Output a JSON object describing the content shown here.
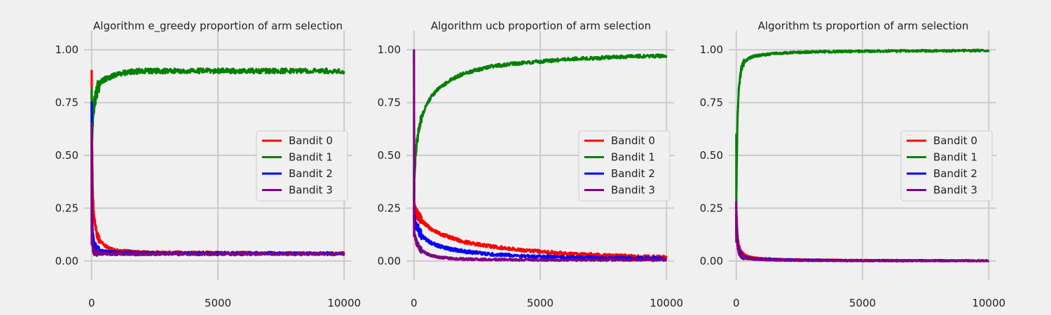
{
  "chart_data": [
    {
      "type": "line",
      "title": "Algorithm e_greedy proportion of arm selection",
      "xlim": [
        -300,
        10300
      ],
      "ylim": [
        -0.09,
        1.09
      ],
      "xticks": [
        0,
        5000,
        10000
      ],
      "xtick_labels": [
        "0",
        "5000",
        "10000"
      ],
      "yticks": [
        0,
        0.25,
        0.5,
        0.75,
        1.0
      ],
      "ytick_labels": [
        "0.00",
        "0.25",
        "0.50",
        "0.75",
        "1.00"
      ],
      "grid": true,
      "legend_position": "center-right",
      "x": [
        0,
        20,
        50,
        100,
        200,
        300,
        500,
        700,
        1000,
        1500,
        2000,
        3000,
        4000,
        5000,
        6000,
        7000,
        8000,
        9000,
        10000
      ],
      "series": [
        {
          "name": "Bandit 0",
          "color": "#ff0000",
          "noise": 0.006,
          "values": [
            0.9,
            0.55,
            0.3,
            0.2,
            0.13,
            0.1,
            0.075,
            0.06,
            0.05,
            0.045,
            0.042,
            0.04,
            0.04,
            0.038,
            0.038,
            0.037,
            0.037,
            0.036,
            0.036
          ]
        },
        {
          "name": "Bandit 1",
          "color": "#008000",
          "noise": 0.012,
          "values": [
            0.8,
            0.6,
            0.67,
            0.74,
            0.8,
            0.84,
            0.86,
            0.87,
            0.885,
            0.895,
            0.9,
            0.9,
            0.9,
            0.9,
            0.9,
            0.9,
            0.9,
            0.9,
            0.9
          ]
        },
        {
          "name": "Bandit 2",
          "color": "#0000ff",
          "noise": 0.006,
          "values": [
            0.75,
            0.2,
            0.12,
            0.08,
            0.06,
            0.05,
            0.045,
            0.042,
            0.04,
            0.04,
            0.038,
            0.038,
            0.037,
            0.037,
            0.037,
            0.037,
            0.036,
            0.036,
            0.036
          ]
        },
        {
          "name": "Bandit 3",
          "color": "#800080",
          "noise": 0.006,
          "values": [
            0.65,
            0.1,
            0.06,
            0.045,
            0.038,
            0.035,
            0.034,
            0.033,
            0.033,
            0.033,
            0.033,
            0.033,
            0.033,
            0.033,
            0.033,
            0.033,
            0.033,
            0.033,
            0.033
          ]
        }
      ]
    },
    {
      "type": "line",
      "title": "Algorithm ucb proportion of arm selection",
      "xlim": [
        -300,
        10300
      ],
      "ylim": [
        -0.09,
        1.09
      ],
      "xticks": [
        0,
        5000,
        10000
      ],
      "xtick_labels": [
        "0",
        "5000",
        "10000"
      ],
      "yticks": [
        0,
        0.25,
        0.5,
        0.75,
        1.0
      ],
      "ytick_labels": [
        "0.00",
        "0.25",
        "0.50",
        "0.75",
        "1.00"
      ],
      "grid": true,
      "legend_position": "center-right",
      "x": [
        0,
        20,
        50,
        100,
        200,
        300,
        500,
        700,
        1000,
        1500,
        2000,
        3000,
        4000,
        5000,
        6000,
        7000,
        8000,
        9000,
        10000
      ],
      "series": [
        {
          "name": "Bandit 0",
          "color": "#ff0000",
          "noise": 0.008,
          "values": [
            0.25,
            0.25,
            0.24,
            0.23,
            0.21,
            0.19,
            0.17,
            0.15,
            0.13,
            0.11,
            0.09,
            0.07,
            0.055,
            0.045,
            0.035,
            0.03,
            0.025,
            0.02,
            0.018
          ]
        },
        {
          "name": "Bandit 1",
          "color": "#008000",
          "noise": 0.008,
          "values": [
            0.3,
            0.4,
            0.47,
            0.55,
            0.63,
            0.68,
            0.74,
            0.78,
            0.82,
            0.86,
            0.89,
            0.92,
            0.935,
            0.945,
            0.955,
            0.96,
            0.965,
            0.97,
            0.972
          ]
        },
        {
          "name": "Bandit 2",
          "color": "#0000ff",
          "noise": 0.008,
          "values": [
            0.22,
            0.2,
            0.19,
            0.17,
            0.14,
            0.12,
            0.1,
            0.085,
            0.07,
            0.055,
            0.045,
            0.032,
            0.025,
            0.02,
            0.017,
            0.015,
            0.013,
            0.012,
            0.011
          ]
        },
        {
          "name": "Bandit 3",
          "color": "#800080",
          "noise": 0.005,
          "values": [
            1.0,
            0.12,
            0.11,
            0.09,
            0.065,
            0.05,
            0.035,
            0.025,
            0.018,
            0.012,
            0.009,
            0.007,
            0.006,
            0.005,
            0.005,
            0.005,
            0.005,
            0.005,
            0.005
          ]
        }
      ]
    },
    {
      "type": "line",
      "title": "Algorithm ts proportion of arm selection",
      "xlim": [
        -300,
        10300
      ],
      "ylim": [
        -0.09,
        1.09
      ],
      "xticks": [
        0,
        5000,
        10000
      ],
      "xtick_labels": [
        "0",
        "5000",
        "10000"
      ],
      "yticks": [
        0,
        0.25,
        0.5,
        0.75,
        1.0
      ],
      "ytick_labels": [
        "0.00",
        "0.25",
        "0.50",
        "0.75",
        "1.00"
      ],
      "grid": true,
      "legend_position": "center-right",
      "x": [
        0,
        20,
        50,
        100,
        200,
        300,
        500,
        700,
        1000,
        1500,
        2000,
        3000,
        4000,
        5000,
        6000,
        7000,
        8000,
        9000,
        10000
      ],
      "series": [
        {
          "name": "Bandit 0",
          "color": "#ff0000",
          "noise": 0.003,
          "values": [
            0.25,
            0.2,
            0.12,
            0.07,
            0.04,
            0.03,
            0.02,
            0.015,
            0.012,
            0.009,
            0.007,
            0.005,
            0.004,
            0.003,
            0.003,
            0.002,
            0.002,
            0.002,
            0.002
          ]
        },
        {
          "name": "Bandit 1",
          "color": "#008000",
          "noise": 0.005,
          "values": [
            0.25,
            0.45,
            0.68,
            0.82,
            0.91,
            0.94,
            0.96,
            0.97,
            0.975,
            0.982,
            0.986,
            0.99,
            0.992,
            0.993,
            0.994,
            0.995,
            0.995,
            0.996,
            0.996
          ]
        },
        {
          "name": "Bandit 2",
          "color": "#0000ff",
          "noise": 0.003,
          "values": [
            0.22,
            0.15,
            0.09,
            0.05,
            0.03,
            0.02,
            0.013,
            0.01,
            0.008,
            0.006,
            0.005,
            0.004,
            0.003,
            0.002,
            0.002,
            0.002,
            0.002,
            0.001,
            0.001
          ]
        },
        {
          "name": "Bandit 3",
          "color": "#800080",
          "noise": 0.003,
          "values": [
            0.28,
            0.12,
            0.07,
            0.04,
            0.022,
            0.015,
            0.01,
            0.008,
            0.006,
            0.004,
            0.003,
            0.002,
            0.002,
            0.001,
            0.001,
            0.001,
            0.001,
            0.001,
            0.001
          ]
        }
      ]
    }
  ]
}
